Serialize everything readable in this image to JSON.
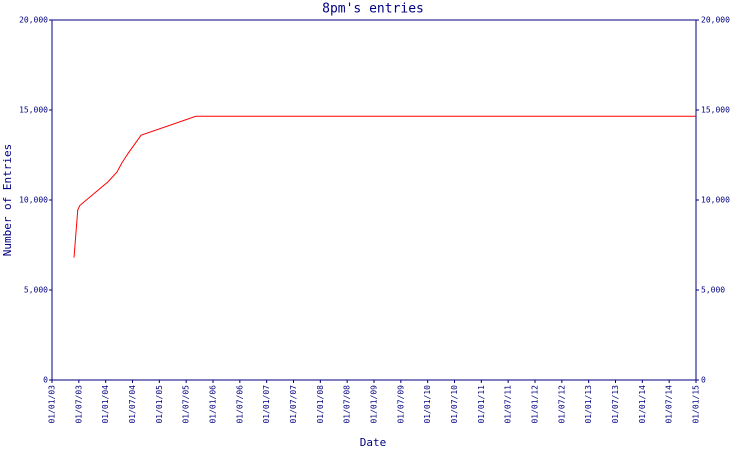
{
  "chart_data": {
    "type": "line",
    "title": "8pm's entries",
    "x_label": "Date",
    "y_label": "Number of Entries",
    "x": [
      2003.41,
      2003.48,
      2003.52,
      2004.04,
      2004.21,
      2004.3,
      2004.42,
      2004.66,
      2005.68,
      2015.0
    ],
    "series": [
      {
        "name": "8pm",
        "color": "#ff0000",
        "values": [
          6800,
          9450,
          9700,
          11000,
          11550,
          12050,
          12600,
          13600,
          14650,
          14650
        ]
      }
    ],
    "xlim": [
      2003.0,
      2015.0
    ],
    "xticks": [
      {
        "value": 2003.0,
        "label": "01/01/03"
      },
      {
        "value": 2003.5,
        "label": "01/07/03"
      },
      {
        "value": 2004.0,
        "label": "01/01/04"
      },
      {
        "value": 2004.5,
        "label": "01/07/04"
      },
      {
        "value": 2005.0,
        "label": "01/01/05"
      },
      {
        "value": 2005.5,
        "label": "01/07/05"
      },
      {
        "value": 2006.0,
        "label": "01/01/06"
      },
      {
        "value": 2006.5,
        "label": "01/07/06"
      },
      {
        "value": 2007.0,
        "label": "01/01/07"
      },
      {
        "value": 2007.5,
        "label": "01/07/07"
      },
      {
        "value": 2008.0,
        "label": "01/01/08"
      },
      {
        "value": 2008.5,
        "label": "01/07/08"
      },
      {
        "value": 2009.0,
        "label": "01/01/09"
      },
      {
        "value": 2009.5,
        "label": "01/07/09"
      },
      {
        "value": 2010.0,
        "label": "01/01/10"
      },
      {
        "value": 2010.5,
        "label": "01/07/10"
      },
      {
        "value": 2011.0,
        "label": "01/01/11"
      },
      {
        "value": 2011.5,
        "label": "01/07/11"
      },
      {
        "value": 2012.0,
        "label": "01/01/12"
      },
      {
        "value": 2012.5,
        "label": "01/07/12"
      },
      {
        "value": 2013.0,
        "label": "01/01/13"
      },
      {
        "value": 2013.5,
        "label": "01/07/13"
      },
      {
        "value": 2014.0,
        "label": "01/01/14"
      },
      {
        "value": 2014.5,
        "label": "01/07/14"
      },
      {
        "value": 2015.0,
        "label": "01/01/15"
      }
    ],
    "ylim": [
      0,
      20000
    ],
    "yticks": [
      0,
      {
        "value": 5000,
        "label": "5,000"
      },
      {
        "value": 10000,
        "label": "10,000"
      },
      {
        "value": 15000,
        "label": "15,000"
      },
      {
        "value": 20000,
        "label": "20,000"
      }
    ],
    "grid": false
  }
}
